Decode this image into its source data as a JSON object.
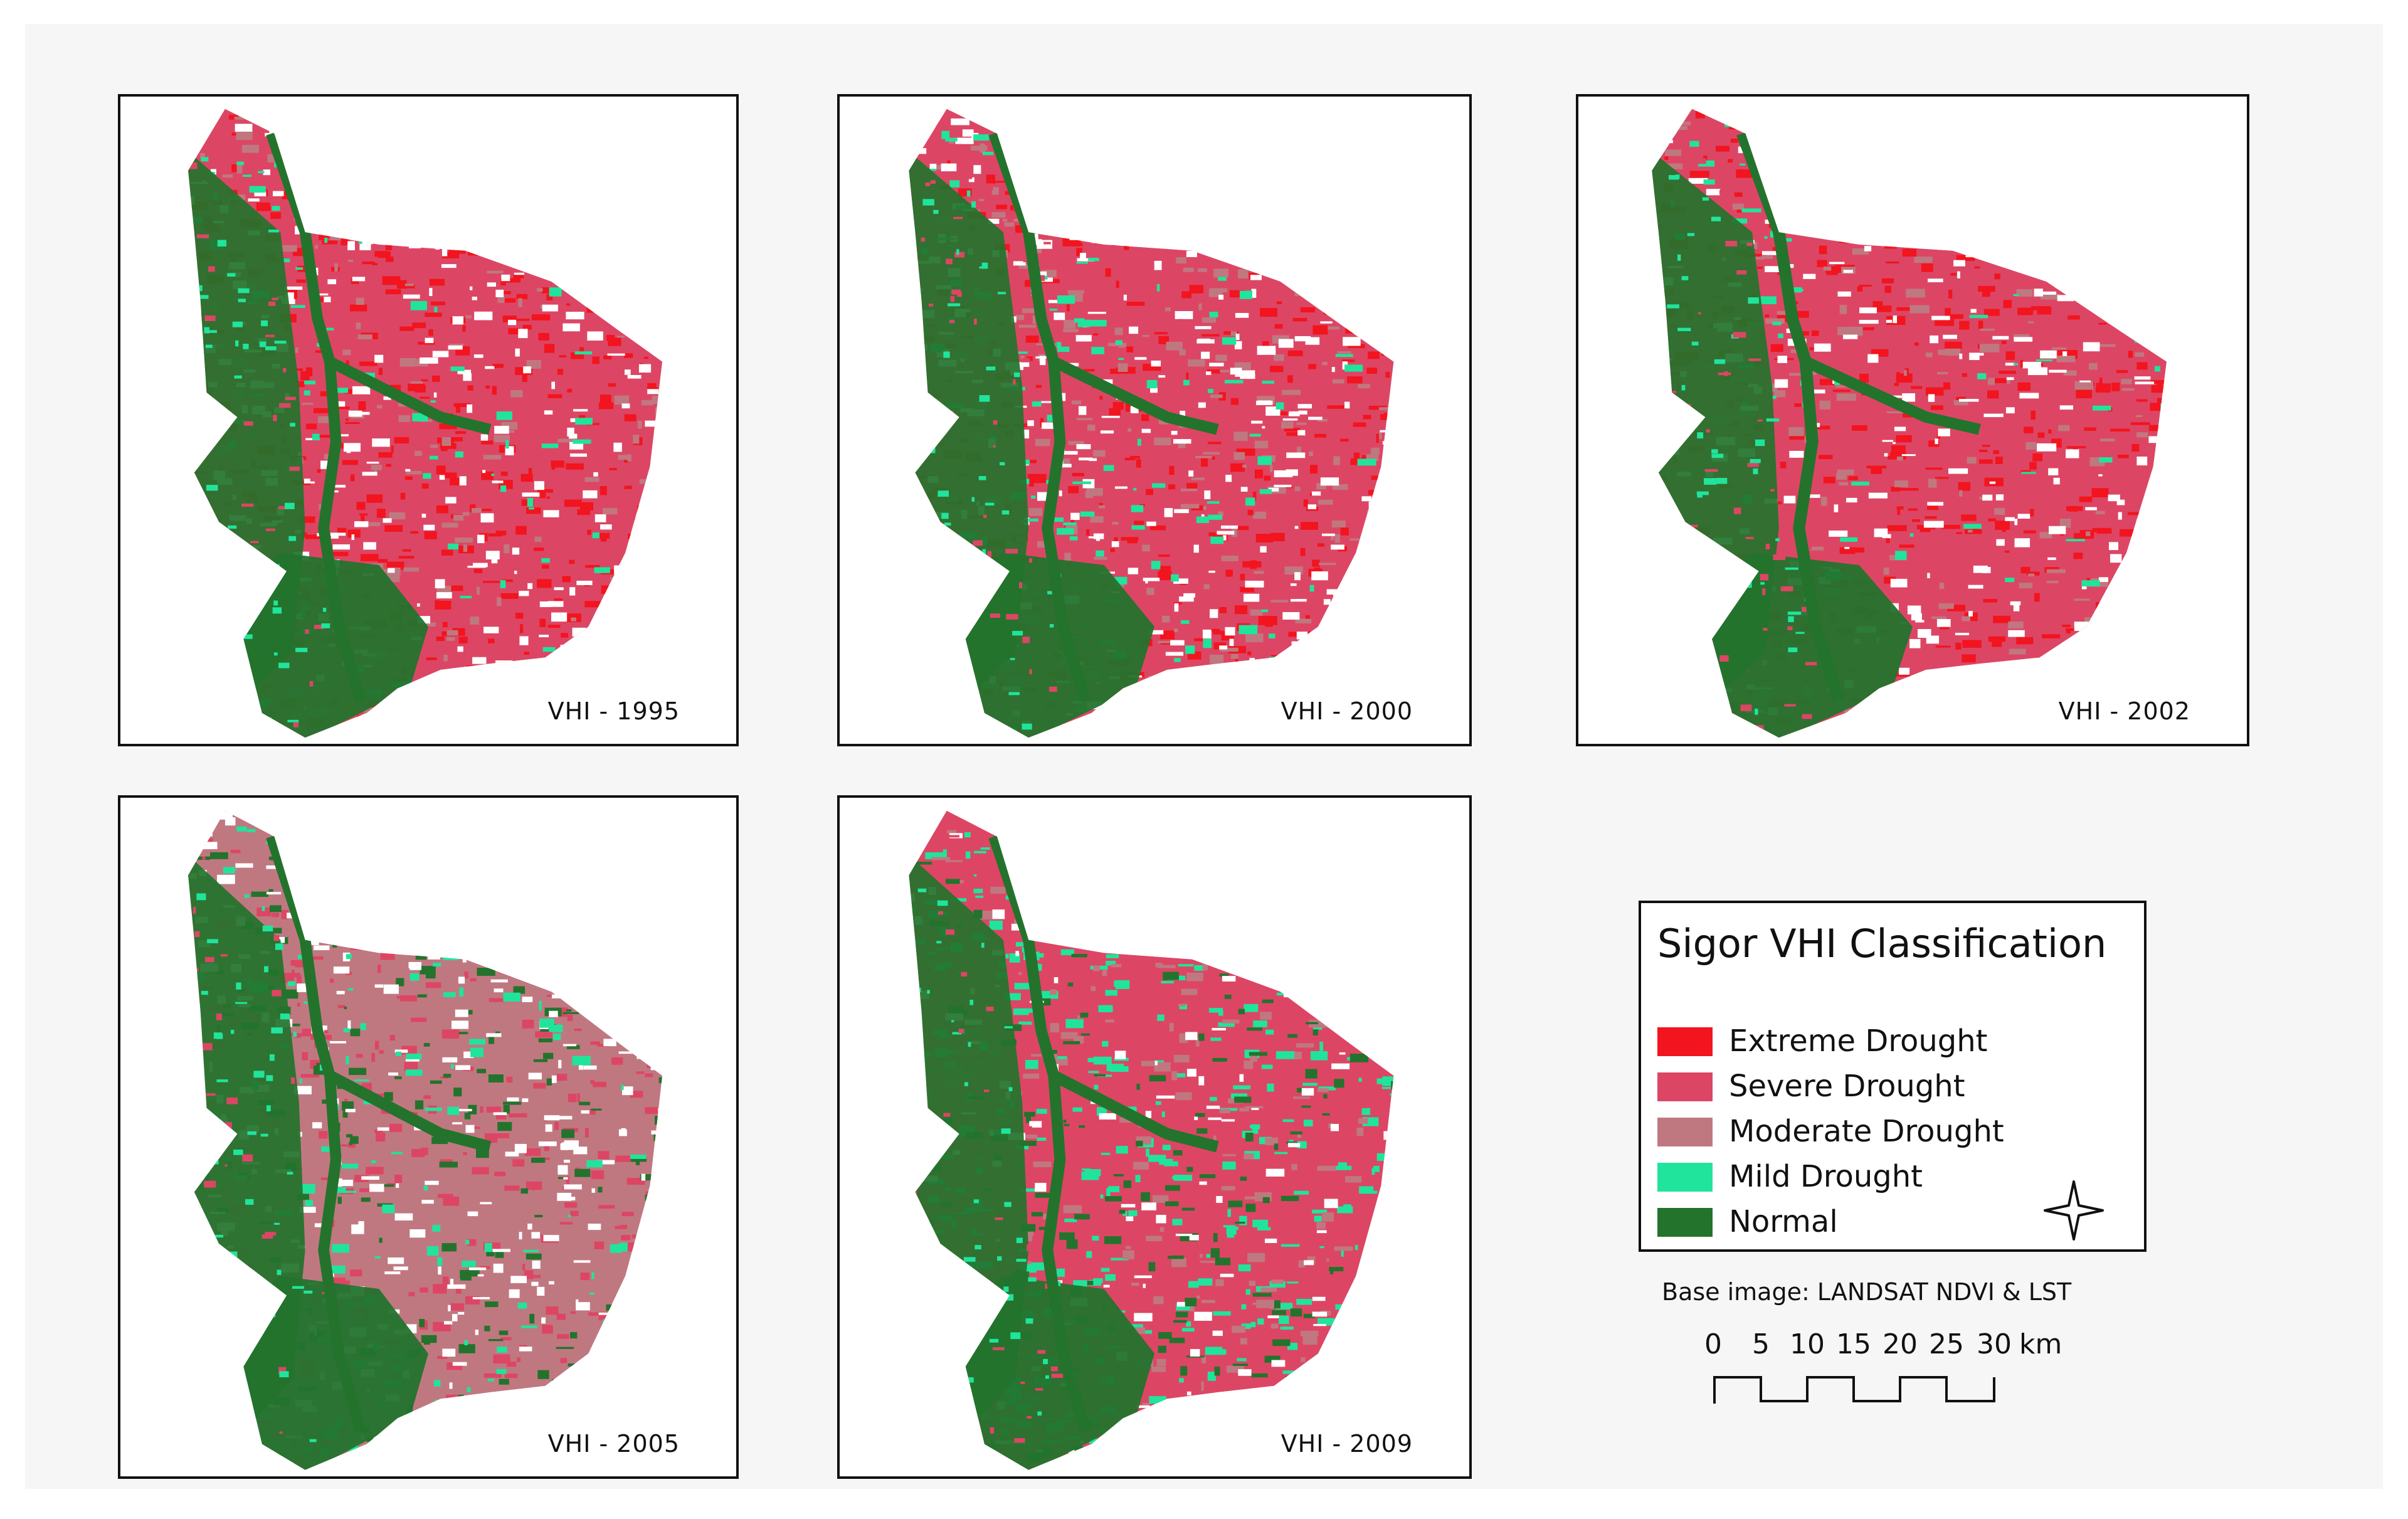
{
  "panels": [
    {
      "label": "VHI - 1995"
    },
    {
      "label": "VHI - 2000"
    },
    {
      "label": "VHI - 2002"
    },
    {
      "label": "VHI - 2005"
    },
    {
      "label": "VHI - 2009"
    }
  ],
  "legend": {
    "title": "Sigor VHI Classification",
    "classes": [
      {
        "label": "Extreme Drought",
        "color": "#f2141e"
      },
      {
        "label": "Severe Drought",
        "color": "#dc4664"
      },
      {
        "label": "Moderate Drought",
        "color": "#c07880"
      },
      {
        "label": "Mild Drought",
        "color": "#20e49c"
      },
      {
        "label": "Normal",
        "color": "#23732d"
      }
    ]
  },
  "base_image": "Base image: LANDSAT  NDVI & LST",
  "scale": {
    "ticks": [
      "0",
      "5",
      "10",
      "15",
      "20",
      "25",
      "30"
    ],
    "unit": "km"
  },
  "north_arrow": "north-arrow-icon"
}
